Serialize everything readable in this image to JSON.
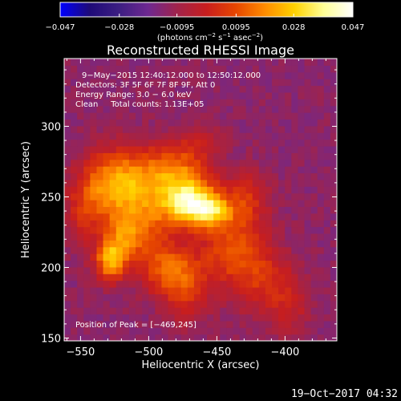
{
  "colors": {
    "background": "#000000",
    "foreground": "#ffffff",
    "colormap": [
      "#0000ff",
      "#1e0a78",
      "#3c1e82",
      "#6e2891",
      "#a0234b",
      "#c81e1e",
      "#e64600",
      "#ff8c00",
      "#ffd200",
      "#ffff96",
      "#ffffff"
    ]
  },
  "chart_data": {
    "type": "heatmap",
    "title": "Reconstructed RHESSI Image",
    "xlabel": "Heliocentric X (arcsec)",
    "ylabel": "Heliocentric Y (arcsec)",
    "xlim": [
      -562,
      -362
    ],
    "ylim": [
      148,
      348
    ],
    "xticks": [
      -550,
      -500,
      -450,
      -400
    ],
    "yticks": [
      150,
      200,
      250,
      300
    ],
    "xtick_labels": [
      "−550",
      "−500",
      "−450",
      "−400"
    ],
    "ytick_labels": [
      "150",
      "200",
      "250",
      "300"
    ],
    "colorbar": {
      "range": [
        -0.047,
        0.047
      ],
      "ticks": [
        -0.047,
        -0.028,
        -0.0095,
        0.0095,
        0.028,
        0.047
      ],
      "tick_labels": [
        "−0.047",
        "−0.028",
        "−0.0095",
        "0.0095",
        "0.028",
        "0.047"
      ],
      "unit_prefix": "(photons cm",
      "unit_exp1": "−2",
      "unit_mid1": " s",
      "unit_exp2": "−1",
      "unit_mid2": " asec",
      "unit_exp3": "−2",
      "unit_suffix": ")"
    },
    "annotations": {
      "time_range": "9−May−2015 12:40:12.000 to 12:50:12.000",
      "detectors": "Detectors: 3F 5F 6F 7F 8F 9F, Att 0",
      "energy": "Energy Range: 3.0 − 6.0 keV",
      "clean": "Clean     Total counts: 1.13E+05",
      "peak": "Position of Peak = [−469,245]"
    },
    "peak": {
      "x": -469,
      "y": 245
    },
    "sources": [
      {
        "x": -469,
        "y": 245,
        "sx": 14,
        "sy": 11,
        "amp": 0.047
      },
      {
        "x": -452,
        "y": 240,
        "sx": 10,
        "sy": 8,
        "amp": 0.022
      },
      {
        "x": -478,
        "y": 268,
        "sx": 16,
        "sy": 14,
        "amp": 0.024
      },
      {
        "x": -512,
        "y": 262,
        "sx": 20,
        "sy": 16,
        "amp": 0.026
      },
      {
        "x": -530,
        "y": 255,
        "sx": 14,
        "sy": 18,
        "amp": 0.018
      },
      {
        "x": -502,
        "y": 232,
        "sx": 14,
        "sy": 16,
        "amp": 0.018
      },
      {
        "x": -528,
        "y": 205,
        "sx": 8,
        "sy": 10,
        "amp": 0.034
      },
      {
        "x": -518,
        "y": 222,
        "sx": 10,
        "sy": 12,
        "amp": 0.02
      },
      {
        "x": -488,
        "y": 200,
        "sx": 14,
        "sy": 13,
        "amp": 0.022
      },
      {
        "x": -472,
        "y": 185,
        "sx": 12,
        "sy": 16,
        "amp": 0.017
      },
      {
        "x": -440,
        "y": 212,
        "sx": 16,
        "sy": 18,
        "amp": 0.022
      },
      {
        "x": -428,
        "y": 248,
        "sx": 12,
        "sy": 14,
        "amp": 0.016
      },
      {
        "x": -415,
        "y": 190,
        "sx": 14,
        "sy": 18,
        "amp": 0.015
      },
      {
        "x": -395,
        "y": 175,
        "sx": 10,
        "sy": 16,
        "amp": 0.01
      },
      {
        "x": -462,
        "y": 290,
        "sx": 10,
        "sy": 8,
        "amp": 0.01
      },
      {
        "x": -548,
        "y": 240,
        "sx": 10,
        "sy": 18,
        "amp": 0.012
      }
    ],
    "background_level": -0.013
  },
  "footer": {
    "timestamp": "19−Oct−2017 04:32"
  }
}
